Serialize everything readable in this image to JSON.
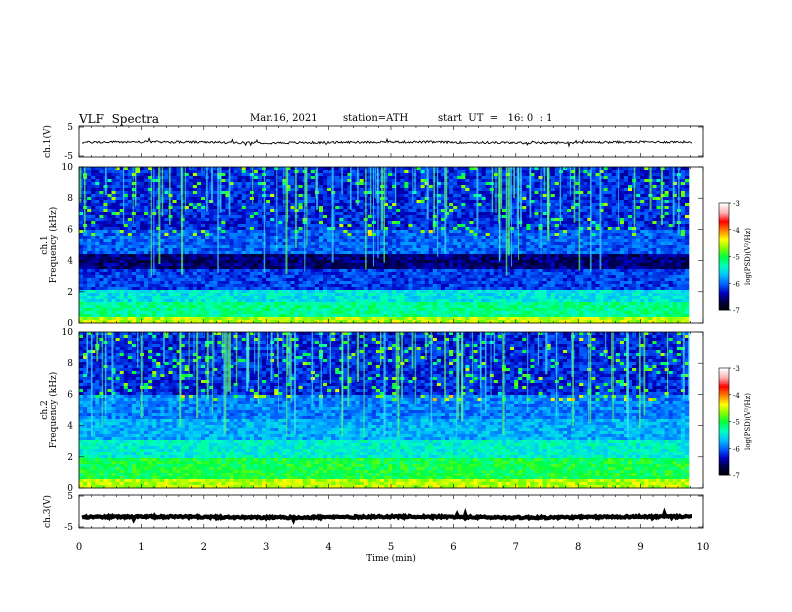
{
  "header": {
    "title": "VLF  Spectra",
    "date": "Mar.16, 2021",
    "station": "station=ATH",
    "start_ut": "start  UT  =   16: 0  : 1"
  },
  "chart_data": [
    {
      "type": "line",
      "panel": "ch1-waveform",
      "ylabel": "ch.1(V)",
      "yticks": [
        "5",
        "-5"
      ],
      "ylim": [
        -5,
        5
      ],
      "x_range": [
        0,
        10
      ],
      "trace_color": "#000000",
      "description_values": {
        "mean": -0.3,
        "amplitude": 0.4
      }
    },
    {
      "type": "heatmap",
      "panel": "ch1-spectrogram",
      "ylabel": "ch.1\nFrequency (kHz)",
      "yticks": [
        "0",
        "2",
        "4",
        "6",
        "8",
        "10"
      ],
      "ylim": [
        0,
        10
      ],
      "colorbar_label": "log(PSD)(V²/Hz)",
      "colorbar_ticks": [
        "-3",
        "-4",
        "-5",
        "-6",
        "-7"
      ],
      "colorbar_range": [
        -7,
        -3
      ]
    },
    {
      "type": "heatmap",
      "panel": "ch2-spectrogram",
      "ylabel": "ch.2\nFrequency (kHz)",
      "yticks": [
        "0",
        "2",
        "4",
        "6",
        "8",
        "10"
      ],
      "ylim": [
        0,
        10
      ],
      "colorbar_label": "log(PSD)(V²/Hz)",
      "colorbar_ticks": [
        "-3",
        "-4",
        "-5",
        "-6",
        "-7"
      ],
      "colorbar_range": [
        -7,
        -3
      ]
    },
    {
      "type": "line",
      "panel": "ch3-waveform",
      "ylabel": "ch.3(V)",
      "yticks": [
        "5",
        "-5"
      ],
      "ylim": [
        -5,
        5
      ],
      "x_range": [
        0,
        10
      ],
      "trace_color": "#000000",
      "description_values": {
        "mean": -1.8,
        "amplitude": 0.3
      }
    }
  ],
  "xaxis": {
    "label": "Time  (min)",
    "ticks": [
      "0",
      "1",
      "2",
      "3",
      "4",
      "5",
      "6",
      "7",
      "8",
      "9",
      "10"
    ],
    "xlim": [
      0,
      10
    ]
  },
  "colors": {
    "colormap": [
      "#000000",
      "#000040",
      "#0000c0",
      "#0060ff",
      "#00c0ff",
      "#00ffc0",
      "#00ff40",
      "#80ff00",
      "#ffff00",
      "#ff8000",
      "#ff0000",
      "#ffb0b0",
      "#ffffff"
    ]
  }
}
